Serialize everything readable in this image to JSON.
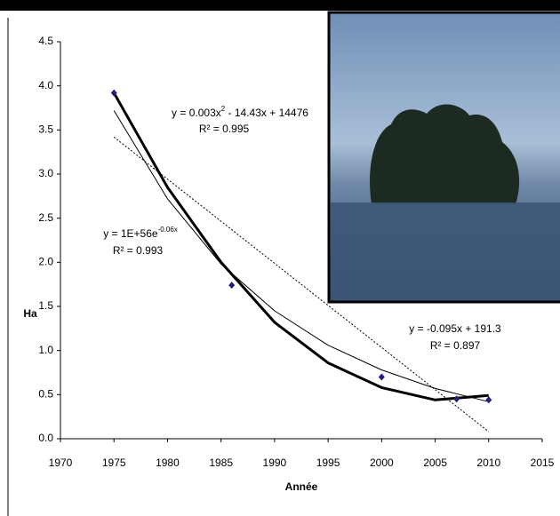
{
  "chart_data": {
    "type": "scatter",
    "x": [
      1975,
      1986,
      2000,
      2007,
      2010
    ],
    "values": [
      3.92,
      1.74,
      0.7,
      0.45,
      0.44
    ],
    "color": "#1f1f7a",
    "xlabel": "Année",
    "ylabel": "Ha",
    "xlim": [
      1970,
      2015
    ],
    "xticks": [
      1970,
      1975,
      1980,
      1985,
      1990,
      1995,
      2000,
      2005,
      2010,
      2015
    ],
    "ylim": [
      0,
      4.5
    ],
    "yticks": [
      {
        "value": 0,
        "label": "0.0"
      },
      {
        "value": 0.5,
        "label": "0.5"
      },
      {
        "value": 1,
        "label": "1.0"
      },
      {
        "value": 1.5,
        "label": "1.5"
      },
      {
        "value": 2,
        "label": "2.0"
      },
      {
        "value": 2.5,
        "label": "2.5"
      },
      {
        "value": 3,
        "label": "3.0"
      },
      {
        "value": 3.5,
        "label": "3.5"
      },
      {
        "value": 4,
        "label": "4.0"
      },
      {
        "value": 4.5,
        "label": "4.5"
      }
    ],
    "grid": false,
    "trendlines": [
      {
        "equation": {
          "text": "y = 0.003x",
          "sup": "2",
          "rest": " - 14.43x + 14476"
        },
        "r2": "R² = 0.995",
        "style": "thick",
        "x": [
          1975,
          1980,
          1985,
          1990,
          1995,
          2000,
          2005,
          2010
        ],
        "values": [
          3.92,
          2.85,
          2.0,
          1.32,
          0.86,
          0.58,
          0.44,
          0.49
        ]
      },
      {
        "equation": {
          "text": "y = 1E+56e",
          "sup": "-0.06x",
          "rest": ""
        },
        "r2": "R² = 0.993",
        "style": "thin",
        "x": [
          1975,
          1980,
          1985,
          1990,
          1995,
          2000,
          2005,
          2010
        ],
        "values": [
          3.72,
          2.72,
          1.98,
          1.45,
          1.06,
          0.78,
          0.57,
          0.42
        ]
      },
      {
        "equation": {
          "text": "y = -0.095x + 191.3",
          "sup": "",
          "rest": ""
        },
        "r2": "R² = 0.897",
        "style": "dashed",
        "x": [
          1975,
          2010
        ],
        "values": [
          3.42,
          0.08
        ]
      }
    ]
  }
}
